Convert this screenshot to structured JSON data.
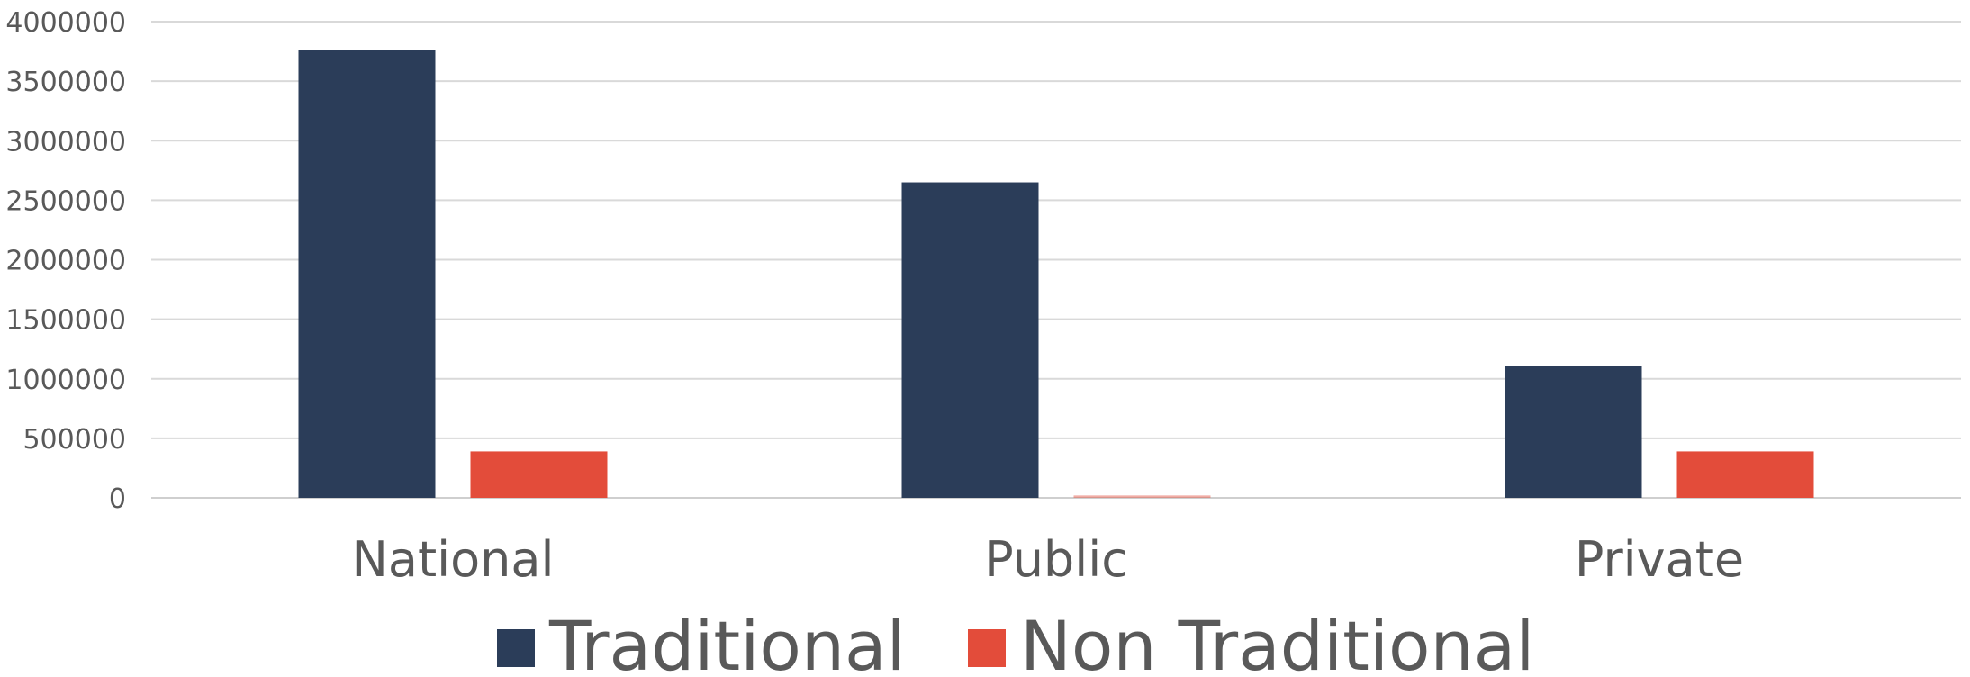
{
  "chart_data": {
    "type": "bar",
    "title": "",
    "xlabel": "",
    "ylabel": "",
    "categories": [
      "National",
      "Public",
      "Private"
    ],
    "series": [
      {
        "name": "Traditional",
        "values": [
          3760000,
          2650000,
          1110000
        ],
        "color": "#2b3d59"
      },
      {
        "name": "Non Traditional",
        "values": [
          390000,
          20000,
          390000
        ],
        "color": "#e34c3a"
      }
    ],
    "ylim": [
      0,
      4000000
    ],
    "yticks": [
      "0",
      "500000",
      "1000000",
      "1500000",
      "2000000",
      "2500000",
      "3000000",
      "3500000",
      "4000000"
    ],
    "grid": true,
    "legend_position": "bottom"
  }
}
